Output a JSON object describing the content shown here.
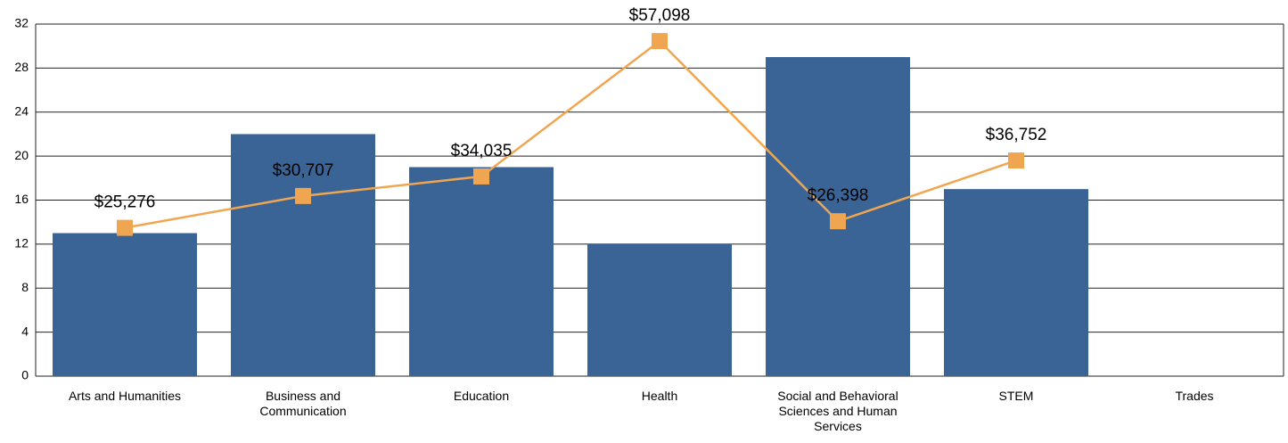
{
  "chart_data": {
    "type": "bar_line",
    "categories": [
      "Arts and Humanities",
      "Business and Communication",
      "Education",
      "Health",
      "Social and Behavioral Sciences and Human Services",
      "STEM",
      "Trades"
    ],
    "series": [
      {
        "type": "bar",
        "color": "#3a6496",
        "values": [
          13,
          22,
          19,
          12,
          29,
          17,
          null
        ]
      },
      {
        "type": "line",
        "axis": "y2",
        "color": "#f0a650",
        "values": [
          25276,
          30707,
          34035,
          57098,
          26398,
          36752,
          null
        ],
        "value_labels": [
          "$25,276",
          "$30,707",
          "$34,035",
          "$57,098",
          "$26,398",
          "$36,752",
          null
        ]
      }
    ],
    "ylim": [
      0,
      32
    ],
    "yticks": [
      0,
      4,
      8,
      12,
      16,
      20,
      24,
      28,
      32
    ],
    "y2lim": [
      0,
      60000
    ],
    "grid": true
  }
}
